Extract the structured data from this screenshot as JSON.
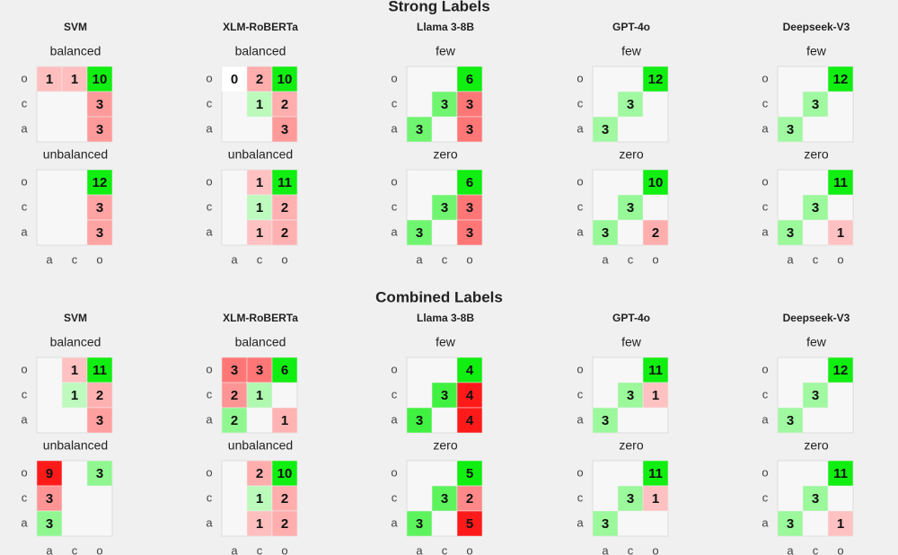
{
  "colors": {
    "diagonal": "#11ee11",
    "off_diagonal": "#ff1a1a"
  },
  "sections": [
    {
      "title": "Strong Labels",
      "panels": [
        {
          "model": "SVM",
          "x_labels": [
            "a",
            "c",
            "o"
          ],
          "charts": [
            {
              "type": "heatmap",
              "title": "balanced",
              "y_labels": [
                "o",
                "c",
                "a"
              ],
              "values": [
                [
                  1,
                  1,
                  10
                ],
                [
                  null,
                  null,
                  3
                ],
                [
                  null,
                  null,
                  3
                ]
              ]
            },
            {
              "type": "heatmap",
              "title": "unbalanced",
              "y_labels": [
                "o",
                "c",
                "a"
              ],
              "values": [
                [
                  null,
                  null,
                  12
                ],
                [
                  null,
                  null,
                  3
                ],
                [
                  null,
                  null,
                  3
                ]
              ]
            }
          ]
        },
        {
          "model": "XLM-RoBERTa",
          "x_labels": [
            "a",
            "c",
            "o"
          ],
          "charts": [
            {
              "type": "heatmap",
              "title": "balanced",
              "y_labels": [
                "o",
                "c",
                "a"
              ],
              "values": [
                [
                  0,
                  2,
                  10
                ],
                [
                  null,
                  1,
                  2
                ],
                [
                  null,
                  null,
                  3
                ]
              ]
            },
            {
              "type": "heatmap",
              "title": "unbalanced",
              "y_labels": [
                "o",
                "c",
                "a"
              ],
              "values": [
                [
                  null,
                  1,
                  11
                ],
                [
                  null,
                  1,
                  2
                ],
                [
                  null,
                  1,
                  2
                ]
              ]
            }
          ]
        },
        {
          "model": "Llama 3-8B",
          "x_labels": [
            "a",
            "c",
            "o"
          ],
          "charts": [
            {
              "type": "heatmap",
              "title": "few",
              "y_labels": [
                "o",
                "c",
                "a"
              ],
              "values": [
                [
                  null,
                  null,
                  6
                ],
                [
                  null,
                  3,
                  3
                ],
                [
                  3,
                  null,
                  3
                ]
              ]
            },
            {
              "type": "heatmap",
              "title": "zero",
              "y_labels": [
                "o",
                "c",
                "a"
              ],
              "values": [
                [
                  null,
                  null,
                  6
                ],
                [
                  null,
                  3,
                  3
                ],
                [
                  3,
                  null,
                  3
                ]
              ]
            }
          ]
        },
        {
          "model": "GPT-4o",
          "x_labels": [
            "a",
            "c",
            "o"
          ],
          "charts": [
            {
              "type": "heatmap",
              "title": "few",
              "y_labels": [
                "o",
                "c",
                "a"
              ],
              "values": [
                [
                  null,
                  null,
                  12
                ],
                [
                  null,
                  3,
                  null
                ],
                [
                  3,
                  null,
                  null
                ]
              ]
            },
            {
              "type": "heatmap",
              "title": "zero",
              "y_labels": [
                "o",
                "c",
                "a"
              ],
              "values": [
                [
                  null,
                  null,
                  10
                ],
                [
                  null,
                  3,
                  null
                ],
                [
                  3,
                  null,
                  2
                ]
              ]
            }
          ]
        },
        {
          "model": "Deepseek-V3",
          "x_labels": [
            "a",
            "c",
            "o"
          ],
          "charts": [
            {
              "type": "heatmap",
              "title": "few",
              "y_labels": [
                "o",
                "c",
                "a"
              ],
              "values": [
                [
                  null,
                  null,
                  12
                ],
                [
                  null,
                  3,
                  null
                ],
                [
                  3,
                  null,
                  null
                ]
              ]
            },
            {
              "type": "heatmap",
              "title": "zero",
              "y_labels": [
                "o",
                "c",
                "a"
              ],
              "values": [
                [
                  null,
                  null,
                  11
                ],
                [
                  null,
                  3,
                  null
                ],
                [
                  3,
                  null,
                  1
                ]
              ]
            }
          ]
        }
      ]
    },
    {
      "title": "Combined Labels",
      "panels": [
        {
          "model": "SVM",
          "x_labels": [
            "a",
            "c",
            "o"
          ],
          "charts": [
            {
              "type": "heatmap",
              "title": "balanced",
              "y_labels": [
                "o",
                "c",
                "a"
              ],
              "values": [
                [
                  null,
                  1,
                  11
                ],
                [
                  null,
                  1,
                  2
                ],
                [
                  null,
                  null,
                  3
                ]
              ]
            },
            {
              "type": "heatmap",
              "title": "unbalanced",
              "y_labels": [
                "o",
                "c",
                "a"
              ],
              "values": [
                [
                  9,
                  null,
                  3
                ],
                [
                  3,
                  null,
                  null
                ],
                [
                  3,
                  null,
                  null
                ]
              ]
            }
          ]
        },
        {
          "model": "XLM-RoBERTa",
          "x_labels": [
            "a",
            "c",
            "o"
          ],
          "charts": [
            {
              "type": "heatmap",
              "title": "balanced",
              "y_labels": [
                "o",
                "c",
                "a"
              ],
              "values": [
                [
                  3,
                  3,
                  6
                ],
                [
                  2,
                  1,
                  null
                ],
                [
                  2,
                  null,
                  1
                ]
              ]
            },
            {
              "type": "heatmap",
              "title": "unbalanced",
              "y_labels": [
                "o",
                "c",
                "a"
              ],
              "values": [
                [
                  null,
                  2,
                  10
                ],
                [
                  null,
                  1,
                  2
                ],
                [
                  null,
                  1,
                  2
                ]
              ]
            }
          ]
        },
        {
          "model": "Llama 3-8B",
          "x_labels": [
            "a",
            "c",
            "o"
          ],
          "charts": [
            {
              "type": "heatmap",
              "title": "few",
              "y_labels": [
                "o",
                "c",
                "a"
              ],
              "values": [
                [
                  null,
                  null,
                  4
                ],
                [
                  null,
                  3,
                  4
                ],
                [
                  3,
                  null,
                  4
                ]
              ]
            },
            {
              "type": "heatmap",
              "title": "zero",
              "y_labels": [
                "o",
                "c",
                "a"
              ],
              "values": [
                [
                  null,
                  null,
                  5
                ],
                [
                  null,
                  3,
                  2
                ],
                [
                  3,
                  null,
                  5
                ]
              ]
            }
          ]
        },
        {
          "model": "GPT-4o",
          "x_labels": [
            "a",
            "c",
            "o"
          ],
          "charts": [
            {
              "type": "heatmap",
              "title": "few",
              "y_labels": [
                "o",
                "c",
                "a"
              ],
              "values": [
                [
                  null,
                  null,
                  11
                ],
                [
                  null,
                  3,
                  1
                ],
                [
                  3,
                  null,
                  null
                ]
              ]
            },
            {
              "type": "heatmap",
              "title": "zero",
              "y_labels": [
                "o",
                "c",
                "a"
              ],
              "values": [
                [
                  null,
                  null,
                  11
                ],
                [
                  null,
                  3,
                  1
                ],
                [
                  3,
                  null,
                  null
                ]
              ]
            }
          ]
        },
        {
          "model": "Deepseek-V3",
          "x_labels": [
            "a",
            "c",
            "o"
          ],
          "charts": [
            {
              "type": "heatmap",
              "title": "few",
              "y_labels": [
                "o",
                "c",
                "a"
              ],
              "values": [
                [
                  null,
                  null,
                  12
                ],
                [
                  null,
                  3,
                  null
                ],
                [
                  3,
                  null,
                  null
                ]
              ]
            },
            {
              "type": "heatmap",
              "title": "zero",
              "y_labels": [
                "o",
                "c",
                "a"
              ],
              "values": [
                [
                  null,
                  null,
                  11
                ],
                [
                  null,
                  3,
                  null
                ],
                [
                  3,
                  null,
                  1
                ]
              ]
            }
          ]
        }
      ]
    }
  ]
}
